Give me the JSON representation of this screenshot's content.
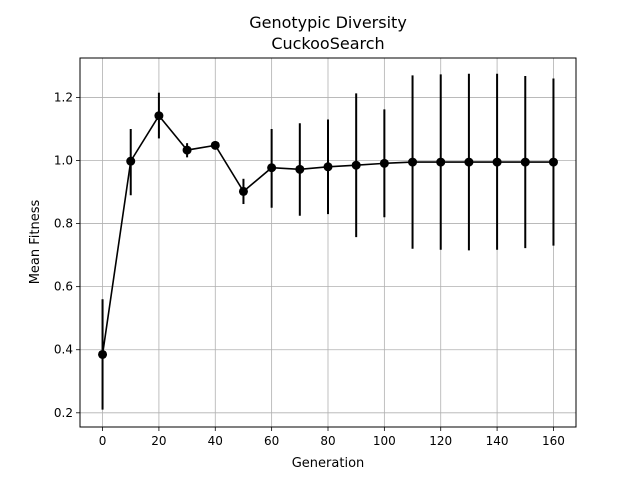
{
  "chart_data": {
    "type": "line",
    "title": "Genotypic Diversity",
    "subtitle": "CuckooSearch",
    "xlabel": "Generation",
    "ylabel": "Mean Fitness",
    "xlim": [
      -8,
      168
    ],
    "ylim": [
      0.155,
      1.325
    ],
    "xticks": [
      0,
      20,
      40,
      60,
      80,
      100,
      120,
      140,
      160
    ],
    "yticks": [
      0.2,
      0.4,
      0.6,
      0.8,
      1.0,
      1.2
    ],
    "grid": true,
    "series": [
      {
        "color": "#000000",
        "marker": "circle",
        "points": [
          {
            "x": 0,
            "y": 0.385,
            "err_low": 0.21,
            "err_high": 0.56
          },
          {
            "x": 10,
            "y": 0.998,
            "err_low": 0.89,
            "err_high": 1.1
          },
          {
            "x": 20,
            "y": 1.142,
            "err_low": 1.07,
            "err_high": 1.215
          },
          {
            "x": 30,
            "y": 1.033,
            "err_low": 1.01,
            "err_high": 1.055
          },
          {
            "x": 40,
            "y": 1.048,
            "err_low": 1.038,
            "err_high": 1.058
          },
          {
            "x": 50,
            "y": 0.902,
            "err_low": 0.862,
            "err_high": 0.942
          },
          {
            "x": 60,
            "y": 0.977,
            "err_low": 0.85,
            "err_high": 1.1
          },
          {
            "x": 70,
            "y": 0.972,
            "err_low": 0.825,
            "err_high": 1.118
          },
          {
            "x": 80,
            "y": 0.98,
            "err_low": 0.83,
            "err_high": 1.13
          },
          {
            "x": 90,
            "y": 0.985,
            "err_low": 0.757,
            "err_high": 1.213
          },
          {
            "x": 100,
            "y": 0.991,
            "err_low": 0.82,
            "err_high": 1.162
          },
          {
            "x": 110,
            "y": 0.995,
            "err_low": 0.72,
            "err_high": 1.27
          },
          {
            "x": 120,
            "y": 0.995,
            "err_low": 0.717,
            "err_high": 1.273
          },
          {
            "x": 130,
            "y": 0.995,
            "err_low": 0.715,
            "err_high": 1.275
          },
          {
            "x": 140,
            "y": 0.995,
            "err_low": 0.717,
            "err_high": 1.275
          },
          {
            "x": 150,
            "y": 0.995,
            "err_low": 0.722,
            "err_high": 1.268
          },
          {
            "x": 160,
            "y": 0.995,
            "err_low": 0.73,
            "err_high": 1.26
          }
        ]
      }
    ]
  }
}
